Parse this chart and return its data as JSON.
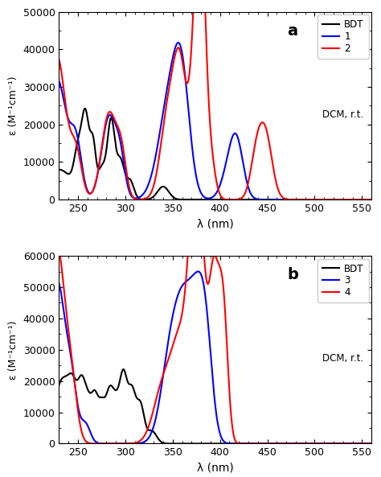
{
  "panel_a": {
    "title": "a",
    "ylabel": "ε (M⁻¹cm⁻¹)",
    "xlabel": "λ (nm)",
    "ylim": [
      0,
      50000
    ],
    "yticks": [
      0,
      10000,
      20000,
      30000,
      40000,
      50000
    ],
    "xlim": [
      230,
      560
    ],
    "xticks": [
      250,
      300,
      350,
      400,
      450,
      500,
      550
    ],
    "legend_labels": [
      "BDT",
      "1",
      "2"
    ],
    "legend_colors": [
      "black",
      "blue",
      "red"
    ],
    "dcm_label": "DCM, r.t."
  },
  "panel_b": {
    "title": "b",
    "ylabel": "ε (M⁻¹cm⁻¹)",
    "xlabel": "λ (nm)",
    "ylim": [
      0,
      60000
    ],
    "yticks": [
      0,
      10000,
      20000,
      30000,
      40000,
      50000,
      60000
    ],
    "xlim": [
      230,
      560
    ],
    "xticks": [
      250,
      300,
      350,
      400,
      450,
      500,
      550
    ],
    "legend_labels": [
      "BDT",
      "3",
      "4"
    ],
    "legend_colors": [
      "black",
      "blue",
      "red"
    ],
    "dcm_label": "DCM, r.t."
  },
  "background_color": "white",
  "line_width": 1.5
}
